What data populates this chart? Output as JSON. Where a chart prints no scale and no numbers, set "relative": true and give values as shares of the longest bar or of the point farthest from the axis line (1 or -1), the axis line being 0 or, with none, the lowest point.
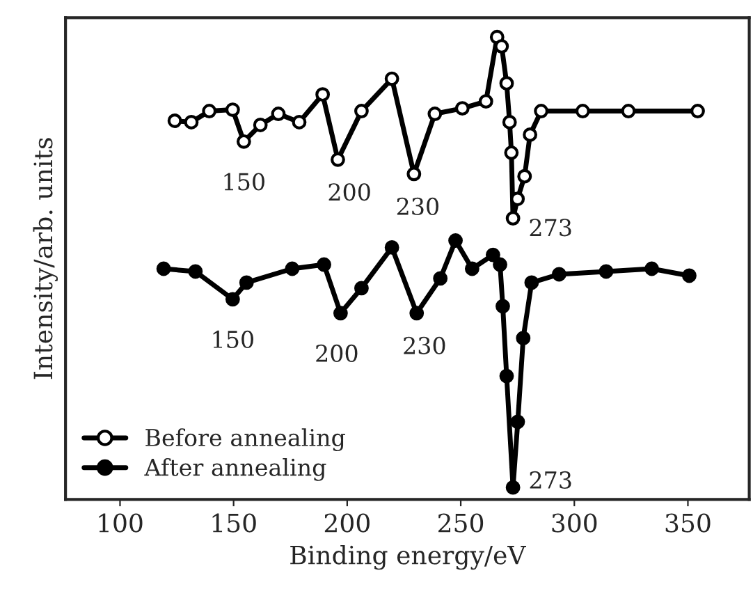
{
  "chart_data": {
    "type": "line",
    "relative": true,
    "xlabel": "Binding energy/eV",
    "ylabel": "Intensity/arb. units",
    "xlim": [
      76,
      377
    ],
    "xticks": [
      100,
      150,
      200,
      250,
      300,
      350
    ],
    "marker": "circle",
    "line_style": "solid",
    "grid": false,
    "legend": "bottom left",
    "series": [
      {
        "name": "Before annealing",
        "color": "#000000",
        "x": [
          124.1,
          131.4,
          139.3,
          149.6,
          154.5,
          161.8,
          169.7,
          178.9,
          189.2,
          195.9,
          206.3,
          219.7,
          229.4,
          238.6,
          250.7,
          261.1,
          266.0,
          268.0,
          270.2,
          271.5,
          272.3,
          273.0,
          275.0,
          278.1,
          280.5,
          285.4,
          303.7,
          323.8,
          354.3
        ],
        "values": [
          0.819,
          0.816,
          0.84,
          0.843,
          0.774,
          0.81,
          0.834,
          0.816,
          0.876,
          0.735,
          0.84,
          0.91,
          0.704,
          0.834,
          0.846,
          0.861,
          1.0,
          0.98,
          0.9,
          0.816,
          0.75,
          0.608,
          0.65,
          0.699,
          0.789,
          0.84,
          0.84,
          0.84,
          0.84
        ]
      },
      {
        "name": "After annealing",
        "color": "#000000",
        "x": [
          119.2,
          133.2,
          149.6,
          155.7,
          175.8,
          189.8,
          197.1,
          206.3,
          219.7,
          230.6,
          241.0,
          247.7,
          255.0,
          264.2,
          267.3,
          268.5,
          270.2,
          273.0,
          275.1,
          277.5,
          281.2,
          293.3,
          314.0,
          334.1,
          350.6
        ],
        "values": [
          0.499,
          0.493,
          0.433,
          0.469,
          0.499,
          0.508,
          0.403,
          0.457,
          0.545,
          0.403,
          0.478,
          0.56,
          0.499,
          0.529,
          0.508,
          0.418,
          0.267,
          0.026,
          0.168,
          0.349,
          0.469,
          0.487,
          0.493,
          0.499,
          0.484
        ]
      }
    ],
    "annotations": [
      {
        "text": "150",
        "x": 154.5,
        "y": 0.774
      },
      {
        "text": "200",
        "x": 195.9,
        "y": 0.735
      },
      {
        "text": "230",
        "x": 229.4,
        "y": 0.704
      },
      {
        "text": "273",
        "x": 273.0,
        "y": 0.608
      },
      {
        "text": "150",
        "x": 149.6,
        "y": 0.433
      },
      {
        "text": "200",
        "x": 197.1,
        "y": 0.403
      },
      {
        "text": "230",
        "x": 230.6,
        "y": 0.403
      },
      {
        "text": "273",
        "x": 273.0,
        "y": 0.026
      }
    ]
  }
}
